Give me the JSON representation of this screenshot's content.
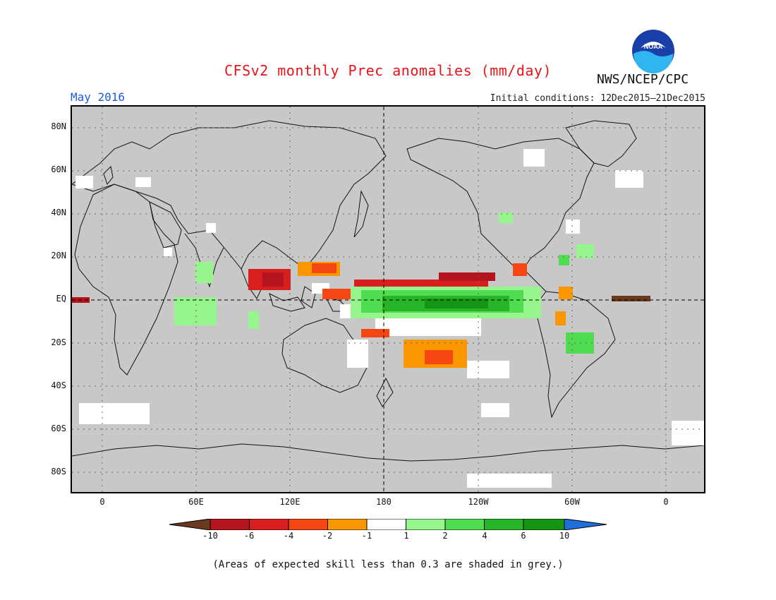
{
  "header": {
    "title": "CFSv2 monthly Prec anomalies (mm/day)",
    "month": "May 2016",
    "org": "NWS/NCEP/CPC",
    "initial_conditions": "Initial conditions: 12Dec2015–21Dec2015",
    "logo_text": "NOAA"
  },
  "map": {
    "lat_labels": [
      "80N",
      "60N",
      "40N",
      "20N",
      "EQ",
      "20S",
      "40S",
      "60S",
      "80S"
    ],
    "lon_labels": [
      "0",
      "60E",
      "120E",
      "180",
      "120W",
      "60W",
      "0"
    ],
    "ocean_color": "#c8c8c8",
    "reference_lines": [
      "equator",
      "date line 180"
    ]
  },
  "legend": {
    "ticks": [
      "-10",
      "-6",
      "-4",
      "-2",
      "-1",
      "1",
      "2",
      "4",
      "6",
      "10"
    ],
    "colors": [
      "#6b3a1e",
      "#b4141e",
      "#d81e1e",
      "#f54614",
      "#fa9600",
      "#ffffff",
      "#96f58c",
      "#50dc50",
      "#28b428",
      "#149614",
      "#1e6edc"
    ]
  },
  "footnote": "(Areas of expected skill less than 0.3 are shaded in grey.)"
}
